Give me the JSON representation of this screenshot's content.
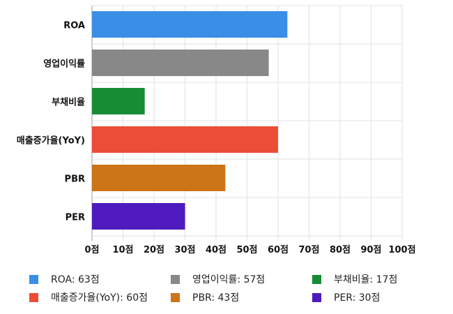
{
  "chart_data": {
    "type": "bar",
    "orientation": "horizontal",
    "categories": [
      "ROA",
      "영업이익률",
      "부채비율",
      "매출증가율(YoY)",
      "PBR",
      "PER"
    ],
    "values": [
      63,
      57,
      17,
      60,
      43,
      30
    ],
    "colors": [
      "#3a8ee6",
      "#888888",
      "#178c35",
      "#ec4d37",
      "#cc7418",
      "#4f1bbf"
    ],
    "xlim": [
      0,
      100
    ],
    "xticks": [
      "0점",
      "10점",
      "20점",
      "30점",
      "40점",
      "50점",
      "60점",
      "70점",
      "80점",
      "90점",
      "100점"
    ],
    "grid": true,
    "legend_position": "bottom",
    "legend": [
      "ROA: 63점",
      "영업이익률: 57점",
      "부채비율: 17점",
      "매출증가율(YoY): 60점",
      "PBR: 43점",
      "PER: 30점"
    ]
  }
}
